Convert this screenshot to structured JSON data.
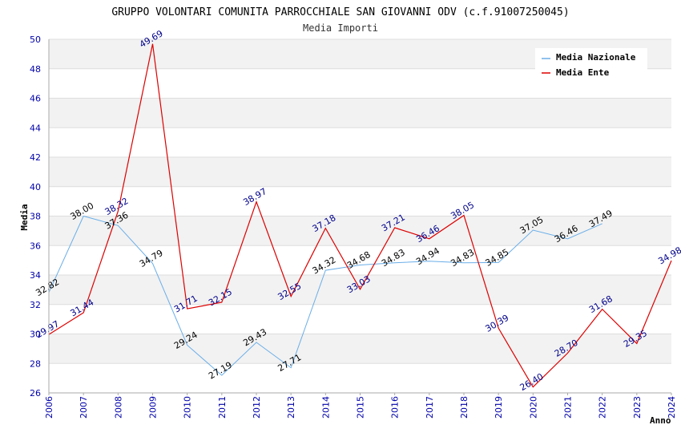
{
  "chart_data": {
    "type": "line",
    "title": "GRUPPO VOLONTARI COMUNITA PARROCCHIALE SAN GIOVANNI ODV (c.f.91007250045)",
    "subtitle": "Media Importi",
    "xlabel": "Anno",
    "ylabel": "Media",
    "ylim": [
      26,
      50
    ],
    "yticks": [
      "26",
      "28",
      "30",
      "32",
      "34",
      "36",
      "38",
      "40",
      "42",
      "44",
      "46",
      "48",
      "50"
    ],
    "categories": [
      "2006",
      "2007",
      "2008",
      "2009",
      "2010",
      "2011",
      "2012",
      "2013",
      "2014",
      "2015",
      "2016",
      "2017",
      "2018",
      "2019",
      "2020",
      "2021",
      "2022",
      "2023",
      "2024"
    ],
    "series": [
      {
        "name": "Media Nazionale",
        "color": "#6aaee8",
        "values": [
          32.82,
          38.0,
          37.36,
          34.79,
          29.24,
          27.19,
          29.43,
          27.71,
          34.32,
          34.68,
          34.83,
          34.94,
          34.83,
          34.85,
          37.05,
          36.46,
          37.49,
          null,
          null
        ],
        "labels": [
          "32.82",
          "38.00",
          "37.36",
          "34.79",
          "29.24",
          "27.19",
          "29.43",
          "27.71",
          "34.32",
          "34.68",
          "34.83",
          "34.94",
          "34.83",
          "34.85",
          "37.05",
          "36.46",
          "37.49",
          null,
          null
        ]
      },
      {
        "name": "Media Ente",
        "color": "#dd0000",
        "values": [
          29.97,
          31.44,
          38.32,
          49.69,
          31.71,
          32.15,
          38.97,
          32.55,
          37.18,
          33.03,
          37.21,
          36.46,
          38.05,
          30.39,
          26.4,
          28.7,
          31.68,
          29.35,
          34.98
        ],
        "labels": [
          "29.97",
          "31.44",
          "38.32",
          "49.69",
          "31.71",
          "32.15",
          "38.97",
          "32.55",
          "37.18",
          "33.03",
          "37.21",
          "36.46",
          "38.05",
          "30.39",
          "26.40",
          "28.70",
          "31.68",
          "29.35",
          "34.98"
        ]
      }
    ],
    "legend_position": "top-right",
    "grid": true
  }
}
